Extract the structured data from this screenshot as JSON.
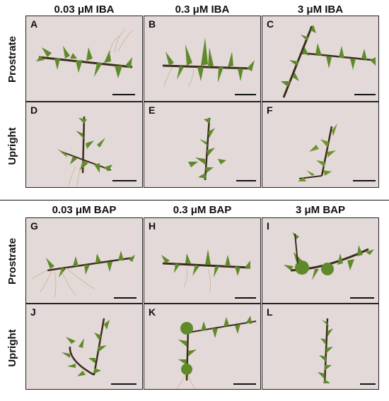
{
  "top_block": {
    "col_headers": [
      "0.03 μM IBA",
      "0.3 μM IBA",
      "3 μM IBA"
    ],
    "row_headers": [
      "Prostrate",
      "Upright"
    ],
    "panels": [
      {
        "letter": "A"
      },
      {
        "letter": "B"
      },
      {
        "letter": "C"
      },
      {
        "letter": "D"
      },
      {
        "letter": "E"
      },
      {
        "letter": "F"
      }
    ]
  },
  "bottom_block": {
    "col_headers": [
      "0.03 μM BAP",
      "0.3 μM BAP",
      "3 μM BAP"
    ],
    "row_headers": [
      "Prostrate",
      "Upright"
    ],
    "panels": [
      {
        "letter": "G"
      },
      {
        "letter": "H"
      },
      {
        "letter": "I"
      },
      {
        "letter": "J"
      },
      {
        "letter": "K"
      },
      {
        "letter": "L"
      }
    ]
  },
  "colors": {
    "panel_background": "#e3d9d8",
    "moss_dark": "#2f5a1c",
    "moss_light": "#7fa23a",
    "rhizoid": "#b9a27c"
  }
}
